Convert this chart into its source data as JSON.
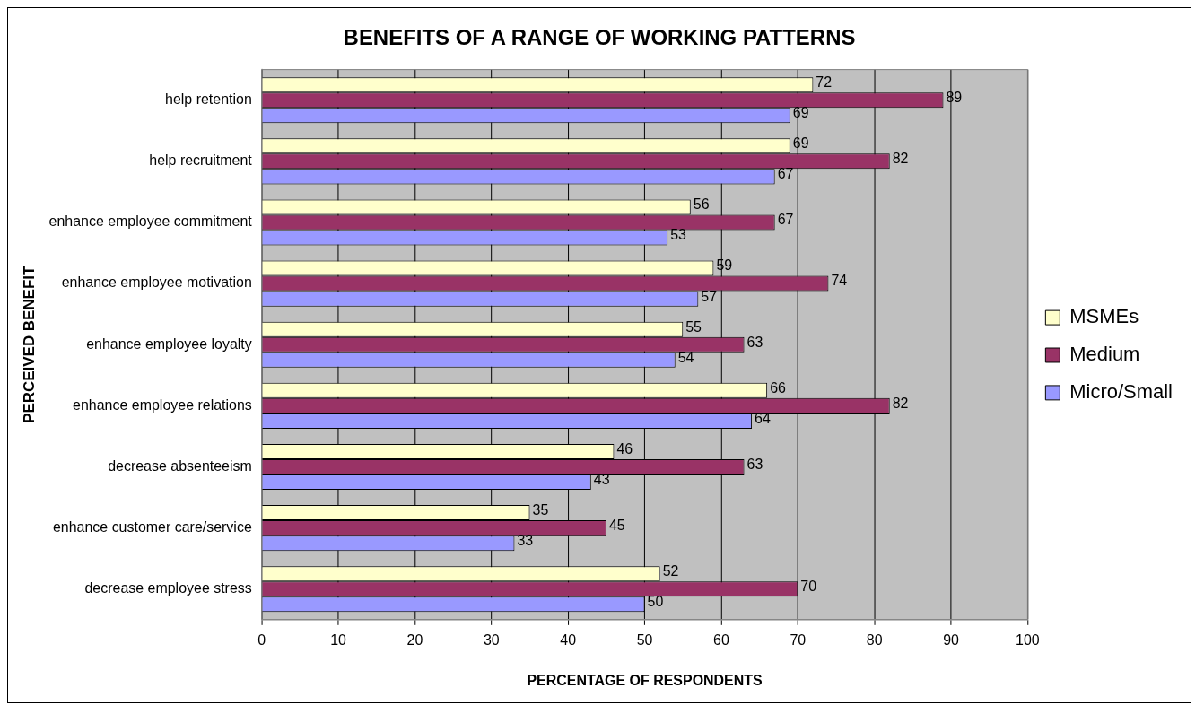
{
  "chart_data": {
    "type": "bar",
    "orientation": "horizontal",
    "title": "BENEFITS OF A RANGE OF WORKING PATTERNS",
    "xlabel": "PERCENTAGE OF RESPONDENTS",
    "ylabel": "PERCEIVED BENEFIT",
    "categories": [
      "help retention",
      "help recruitment",
      "enhance employee commitment",
      "enhance employee motivation",
      "enhance employee loyalty",
      "enhance employee relations",
      "decrease absenteeism",
      "enhance customer care/service",
      "decrease employee stress"
    ],
    "series": [
      {
        "name": "MSMEs",
        "color": "#ffffcc",
        "values": [
          72,
          69,
          56,
          59,
          55,
          66,
          46,
          35,
          52
        ]
      },
      {
        "name": "Medium",
        "color": "#993366",
        "values": [
          89,
          82,
          67,
          74,
          63,
          82,
          63,
          45,
          70
        ]
      },
      {
        "name": "Micro/Small",
        "color": "#9999ff",
        "values": [
          69,
          67,
          53,
          57,
          54,
          64,
          43,
          33,
          50
        ]
      }
    ],
    "xlim": [
      0,
      100
    ],
    "xticks": [
      0,
      10,
      20,
      30,
      40,
      50,
      60,
      70,
      80,
      90,
      100
    ],
    "grid": "x",
    "legend": "right",
    "data_labels": true
  }
}
